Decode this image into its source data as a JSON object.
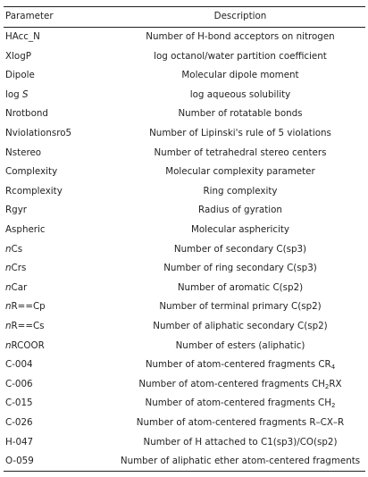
{
  "table": {
    "headers": {
      "parameter": "Parameter",
      "description": "Description"
    },
    "rows": [
      {
        "parameter": [
          "HAcc_N"
        ],
        "description": [
          "Number of H-bond acceptors on nitrogen"
        ]
      },
      {
        "parameter": [
          "XlogP"
        ],
        "description": [
          "log octanol/water partition coefficient"
        ]
      },
      {
        "parameter": [
          "Dipole"
        ],
        "description": [
          "Molecular dipole moment"
        ]
      },
      {
        "parameter": [
          "log ",
          "S"
        ],
        "description": [
          "log aqueous solubility"
        ]
      },
      {
        "parameter": [
          "Nrotbond"
        ],
        "description": [
          "Number of rotatable bonds"
        ]
      },
      {
        "parameter": [
          "Nviolationsro5"
        ],
        "description": [
          "Number of Lipinski's rule of 5 violations"
        ]
      },
      {
        "parameter": [
          "Nstereo"
        ],
        "description": [
          "Number of tetrahedral stereo centers"
        ]
      },
      {
        "parameter": [
          "Complexity"
        ],
        "description": [
          "Molecular complexity parameter"
        ]
      },
      {
        "parameter": [
          "Rcomplexity"
        ],
        "description": [
          "Ring complexity"
        ]
      },
      {
        "parameter": [
          "Rgyr"
        ],
        "description": [
          "Radius of gyration"
        ]
      },
      {
        "parameter": [
          "Aspheric"
        ],
        "description": [
          "Molecular asphericity"
        ]
      },
      {
        "parameter": [
          "n",
          "Cs"
        ],
        "description": [
          "Number of secondary C(sp3)"
        ]
      },
      {
        "parameter": [
          "n",
          "Crs"
        ],
        "description": [
          "Number of ring secondary C(sp3)"
        ]
      },
      {
        "parameter": [
          "n",
          "Car"
        ],
        "description": [
          "Number of aromatic C(sp2)"
        ]
      },
      {
        "parameter": [
          "n",
          "R==Cp"
        ],
        "description": [
          "Number of terminal primary C(sp2)"
        ]
      },
      {
        "parameter": [
          "n",
          "R==Cs"
        ],
        "description": [
          "Number of aliphatic secondary C(sp2)"
        ]
      },
      {
        "parameter": [
          "n",
          "RCOOR"
        ],
        "description": [
          "Number of esters (aliphatic)"
        ]
      },
      {
        "parameter": [
          "C-004"
        ],
        "description": [
          "Number of atom-centered fragments CR",
          "4"
        ]
      },
      {
        "parameter": [
          "C-006"
        ],
        "description": [
          "Number of atom-centered fragments CH",
          "2",
          "RX"
        ]
      },
      {
        "parameter": [
          "C-015"
        ],
        "description": [
          "Number of atom-centered fragments CH",
          "2"
        ]
      },
      {
        "parameter": [
          "C-026"
        ],
        "description": [
          "Number of atom-centered fragments R–CX–R"
        ]
      },
      {
        "parameter": [
          "H-047"
        ],
        "description": [
          "Number of H attached to C1(sp3)/CO(sp2)"
        ]
      },
      {
        "parameter": [
          "O-059"
        ],
        "description": [
          "Number of aliphatic ether atom-centered fragments"
        ]
      }
    ]
  }
}
